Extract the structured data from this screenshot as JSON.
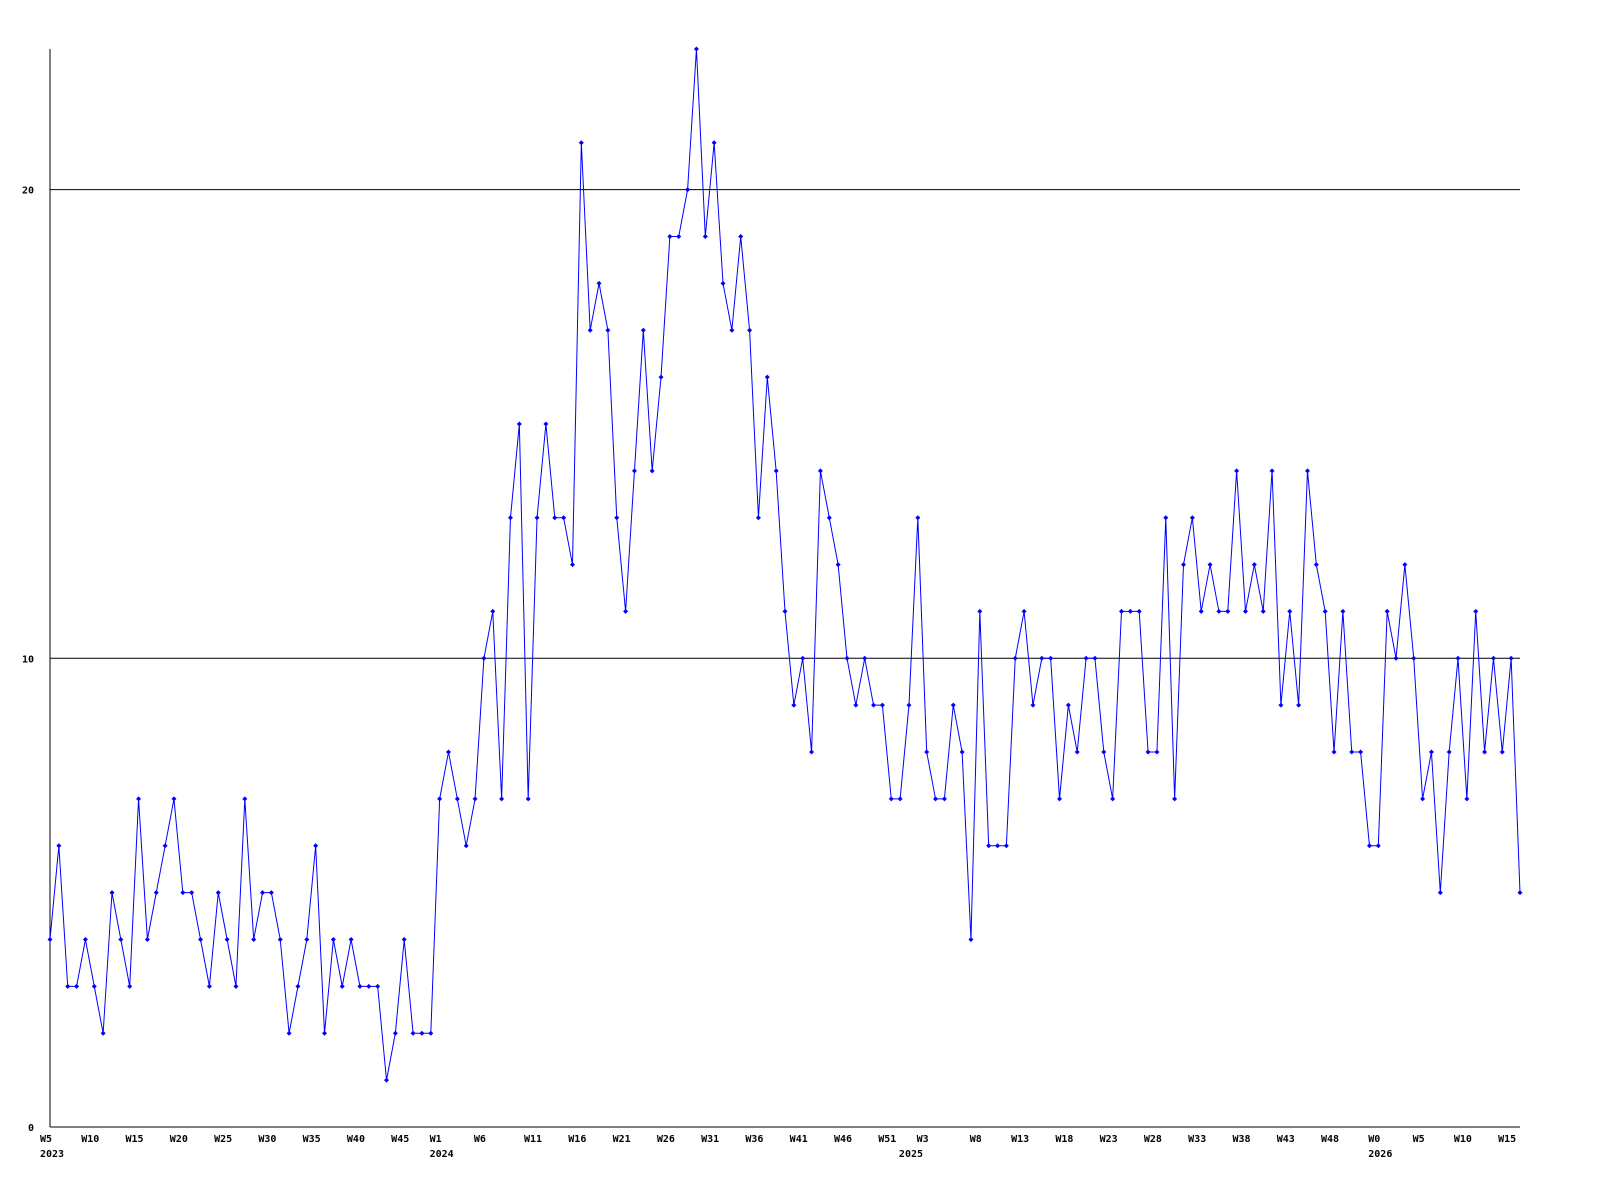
{
  "chart_data": {
    "type": "line",
    "categories": [
      "W5",
      null,
      null,
      null,
      null,
      "W10",
      null,
      null,
      null,
      null,
      "W15",
      null,
      null,
      null,
      null,
      "W20",
      null,
      null,
      null,
      null,
      "W25",
      null,
      null,
      null,
      null,
      "W30",
      null,
      null,
      null,
      null,
      "W35",
      null,
      null,
      null,
      null,
      "W40",
      null,
      null,
      null,
      null,
      "W45",
      null,
      null,
      null,
      "W1",
      null,
      null,
      null,
      null,
      "W6",
      null,
      null,
      null,
      null,
      null,
      "W11",
      null,
      null,
      null,
      null,
      "W16",
      null,
      null,
      null,
      null,
      "W21",
      null,
      null,
      null,
      null,
      "W26",
      null,
      null,
      null,
      null,
      "W31",
      null,
      null,
      null,
      null,
      "W36",
      null,
      null,
      null,
      null,
      "W41",
      null,
      null,
      null,
      null,
      "W46",
      null,
      null,
      null,
      null,
      "W51",
      null,
      null,
      null,
      "W3",
      null,
      null,
      null,
      null,
      null,
      "W8",
      null,
      null,
      null,
      null,
      "W13",
      null,
      null,
      null,
      null,
      "W18",
      null,
      null,
      null,
      null,
      "W23",
      null,
      null,
      null,
      null,
      "W28",
      null,
      null,
      null,
      null,
      "W33",
      null,
      null,
      null,
      null,
      "W38",
      null,
      null,
      null,
      null,
      "W43",
      null,
      null,
      null,
      null,
      "W48",
      null,
      null,
      null,
      null,
      "W0",
      null,
      null,
      null,
      null,
      "W5",
      null,
      null,
      null,
      null,
      "W10",
      null,
      null,
      null,
      null,
      "W15",
      null
    ],
    "year_labels": [
      "2023",
      null,
      null,
      null,
      null,
      null,
      null,
      null,
      null,
      null,
      null,
      null,
      null,
      null,
      null,
      null,
      null,
      null,
      null,
      null,
      null,
      null,
      null,
      null,
      null,
      null,
      null,
      null,
      null,
      null,
      null,
      null,
      null,
      null,
      null,
      null,
      null,
      null,
      null,
      null,
      null,
      null,
      null,
      null,
      "2024",
      null,
      null,
      null,
      null,
      null,
      null,
      null,
      null,
      null,
      null,
      null,
      null,
      null,
      null,
      null,
      null,
      null,
      null,
      null,
      null,
      null,
      null,
      null,
      null,
      null,
      null,
      null,
      null,
      null,
      null,
      null,
      null,
      null,
      null,
      null,
      null,
      null,
      null,
      null,
      null,
      null,
      null,
      null,
      null,
      null,
      null,
      null,
      null,
      null,
      null,
      null,
      null,
      "2025",
      null,
      null,
      null,
      null,
      null,
      null,
      null,
      null,
      null,
      null,
      null,
      null,
      null,
      null,
      null,
      null,
      null,
      null,
      null,
      null,
      null,
      null,
      null,
      null,
      null,
      null,
      null,
      null,
      null,
      null,
      null,
      null,
      null,
      null,
      null,
      null,
      null,
      null,
      null,
      null,
      null,
      null,
      null,
      null,
      null,
      null,
      null,
      null,
      null,
      null,
      null,
      null,
      "2026",
      null,
      null,
      null,
      null,
      null,
      null,
      null,
      null,
      null,
      null,
      null,
      null,
      null,
      null,
      null,
      null
    ],
    "series": [
      {
        "color": "#0000ff",
        "values": [
          4,
          6,
          3,
          3,
          4,
          3,
          2,
          5,
          4,
          3,
          7,
          4,
          5,
          6,
          7,
          5,
          5,
          4,
          3,
          5,
          4,
          3,
          7,
          4,
          5,
          5,
          4,
          2,
          3,
          4,
          6,
          2,
          4,
          3,
          4,
          3,
          3,
          3,
          1,
          2,
          4,
          2,
          2,
          2,
          7,
          8,
          7,
          6,
          7,
          10,
          11,
          7,
          13,
          15,
          7,
          13,
          15,
          13,
          13,
          12,
          21,
          17,
          18,
          17,
          13,
          11,
          14,
          17,
          14,
          16,
          19,
          19,
          20,
          23,
          19,
          21,
          18,
          17,
          19,
          17,
          13,
          16,
          14,
          11,
          9,
          10,
          8,
          14,
          13,
          12,
          10,
          9,
          10,
          9,
          9,
          7,
          7,
          9,
          13,
          8,
          7,
          7,
          9,
          8,
          4,
          11,
          6,
          6,
          6,
          10,
          11,
          9,
          10,
          10,
          7,
          9,
          8,
          10,
          10,
          8,
          7,
          11,
          11,
          11,
          8,
          8,
          13,
          7,
          12,
          13,
          11,
          12,
          11,
          11,
          14,
          11,
          12,
          11,
          14,
          9,
          11,
          9,
          14,
          12,
          11,
          8,
          11,
          8,
          8,
          6,
          6,
          11,
          10,
          12,
          10,
          7,
          8,
          5,
          8,
          10,
          7,
          11,
          8,
          10,
          8,
          10,
          5
        ]
      }
    ],
    "ylim": [
      0,
      23
    ],
    "yticks": [
      0,
      10,
      20
    ],
    "grid": true
  }
}
